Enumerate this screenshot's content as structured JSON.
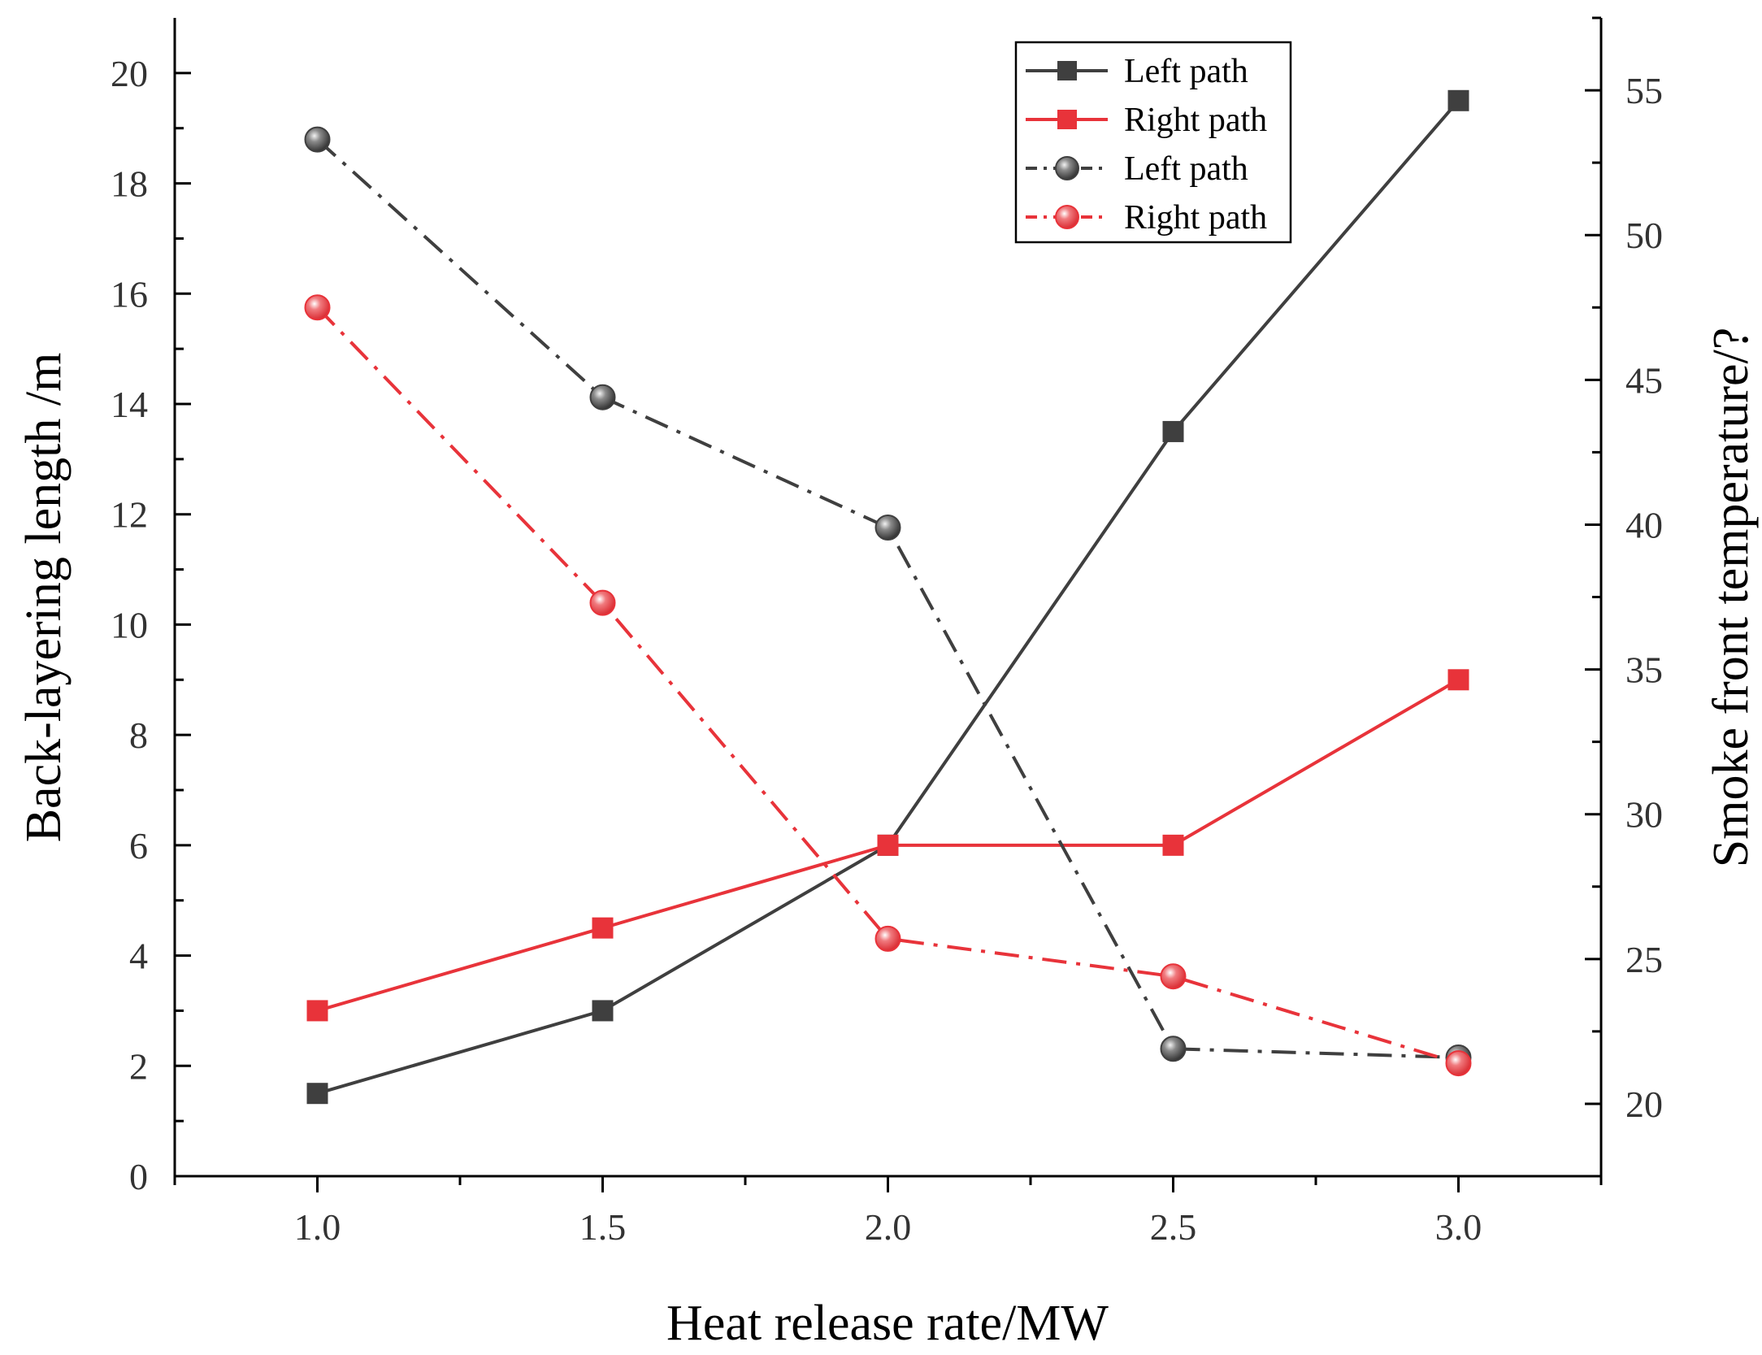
{
  "chart_data": {
    "type": "line",
    "title": "",
    "xlabel": "Heat release rate/MW",
    "ylabel": "Back-layering length /m",
    "y2label": "Smoke front temperature/?",
    "xlim": [
      0.75,
      3.25
    ],
    "ylim": [
      0,
      21
    ],
    "y2lim": [
      17.5,
      57.5
    ],
    "x_ticks": [
      "1.0",
      "1.5",
      "2.0",
      "2.5",
      "3.0"
    ],
    "x_tick_values": [
      1.0,
      1.5,
      2.0,
      2.5,
      3.0
    ],
    "y_ticks": [
      0,
      2,
      4,
      6,
      8,
      10,
      12,
      14,
      16,
      18,
      20
    ],
    "y2_ticks": [
      20,
      25,
      30,
      35,
      40,
      45,
      50,
      55
    ],
    "x": [
      1.0,
      1.5,
      2.0,
      2.5,
      3.0
    ],
    "legend_position": "top-right",
    "series": [
      {
        "name": "Left path",
        "axis": "left",
        "color": "#3f3f3f",
        "marker": "square",
        "line": "solid",
        "values": [
          1.5,
          3.0,
          6.0,
          13.5,
          19.5
        ]
      },
      {
        "name": "Right path",
        "axis": "left",
        "color": "#e8333a",
        "marker": "square",
        "line": "solid",
        "values": [
          3.0,
          4.5,
          6.0,
          6.0,
          9.0
        ]
      },
      {
        "name": "Left path",
        "axis": "right",
        "color": "#3f3f3f",
        "marker": "sphere",
        "line": "dashdot",
        "values": [
          53.3,
          44.4,
          39.9,
          21.9,
          21.6
        ]
      },
      {
        "name": "Right path",
        "axis": "right",
        "color": "#e8333a",
        "marker": "sphere",
        "line": "dashdot",
        "values": [
          47.5,
          37.3,
          25.7,
          24.4,
          21.4
        ]
      }
    ]
  }
}
